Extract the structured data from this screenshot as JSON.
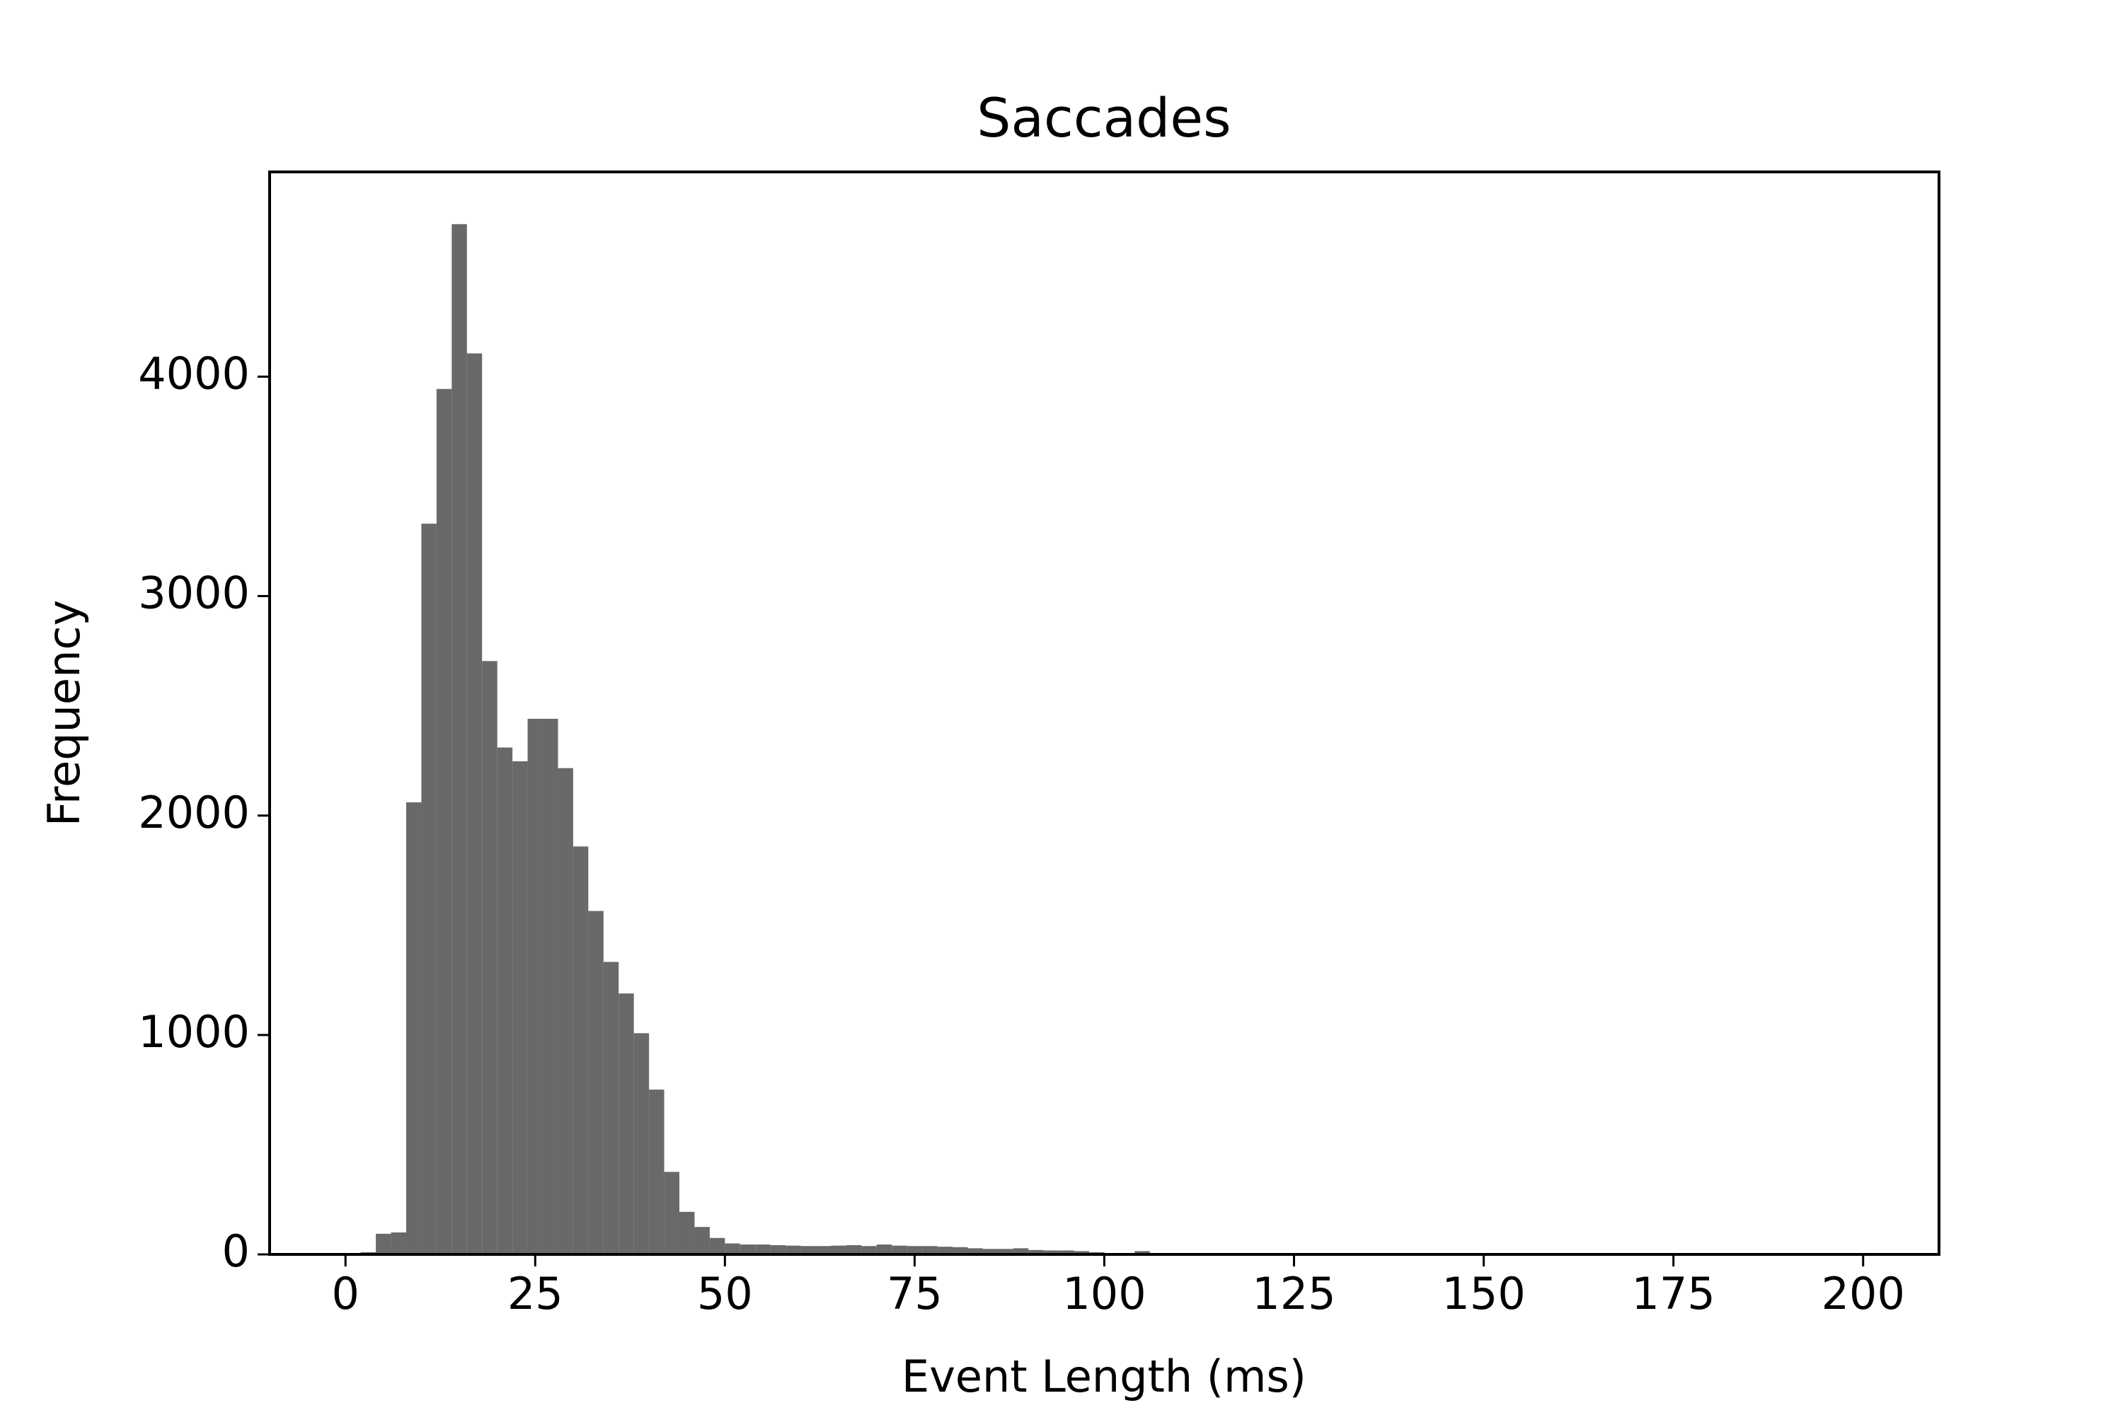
{
  "chart_data": {
    "type": "histogram",
    "title": "Saccades",
    "x_label": "Event Length (ms)",
    "y_label": "Frequency",
    "bins": [
      0,
      2,
      4,
      6,
      8,
      10,
      12,
      14,
      16,
      18,
      20,
      22,
      24,
      26,
      28,
      30,
      32,
      34,
      36,
      38,
      40,
      42,
      44,
      46,
      48,
      50,
      52,
      54,
      56,
      58,
      60,
      62,
      64,
      66,
      68,
      70,
      72,
      74,
      76,
      78,
      80,
      82,
      84,
      86,
      88,
      90,
      92,
      94,
      96,
      98,
      100,
      102,
      104,
      106,
      108,
      110,
      112,
      114,
      116,
      118,
      120,
      122,
      124,
      126,
      128,
      130,
      132,
      134,
      136,
      138,
      140,
      142,
      144,
      146,
      148,
      150,
      152,
      154,
      156,
      158,
      160,
      162,
      164,
      166,
      168,
      170,
      172,
      174,
      176,
      178,
      180,
      182,
      184,
      186,
      188,
      190,
      192,
      194,
      196,
      198,
      200
    ],
    "values": [
      0,
      10,
      94,
      100,
      2060,
      3330,
      3944,
      4695,
      4106,
      2704,
      2310,
      2247,
      2441,
      2441,
      2216,
      1859,
      1565,
      1333,
      1189,
      1008,
      751,
      376,
      194,
      125,
      75,
      50,
      45,
      45,
      42,
      40,
      38,
      38,
      40,
      42,
      38,
      45,
      40,
      38,
      38,
      35,
      33,
      28,
      25,
      25,
      28,
      20,
      18,
      18,
      15,
      10,
      3,
      2,
      15,
      0,
      0,
      0,
      0,
      0,
      0,
      0,
      0,
      0,
      0,
      0,
      0,
      0,
      0,
      0,
      0,
      0,
      0,
      0,
      0,
      0,
      0,
      0,
      0,
      0,
      0,
      0,
      0,
      0,
      0,
      0,
      0,
      0,
      0,
      0,
      0,
      0,
      0,
      0,
      0,
      0,
      0,
      0,
      0,
      0,
      0,
      0
    ],
    "color": "#696969",
    "xlim": [
      -10,
      210
    ],
    "ylim": [
      0,
      4933
    ],
    "xticks": [
      0,
      25,
      50,
      75,
      100,
      125,
      150,
      175,
      200
    ],
    "yticks": [
      0,
      1000,
      2000,
      3000,
      4000
    ]
  }
}
